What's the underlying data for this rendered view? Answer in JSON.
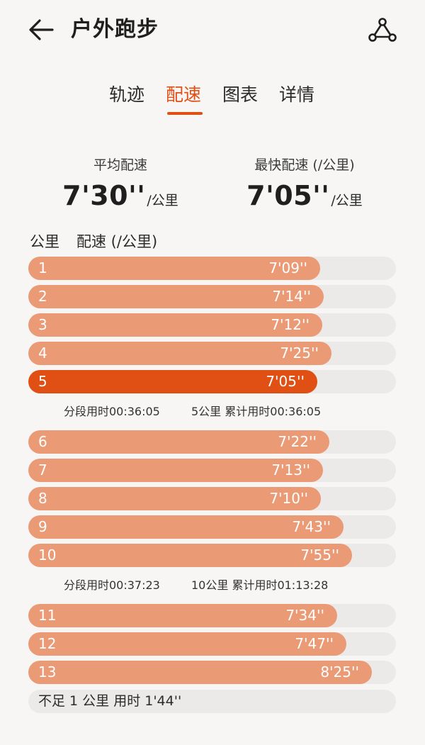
{
  "header": {
    "title": "户外跑步",
    "back_icon": "arrow-left-icon",
    "share_icon": "share-icon"
  },
  "tabs": [
    {
      "label": "轨迹",
      "active": false
    },
    {
      "label": "配速",
      "active": true
    },
    {
      "label": "图表",
      "active": false
    },
    {
      "label": "详情",
      "active": false
    }
  ],
  "summary": {
    "avg_label": "平均配速",
    "avg_value": "7'30''",
    "avg_unit": "/公里",
    "best_label": "最快配速 (/公里)",
    "best_value": "7'05''",
    "best_unit": "/公里"
  },
  "columns": {
    "km": "公里",
    "pace": "配速 (/公里)"
  },
  "colors": {
    "accent": "#e04f14",
    "bar": "#eb9a76",
    "track": "#ebeae9"
  },
  "scale_max_seconds": 540,
  "splits_rows": [
    {
      "km": "1",
      "pace": "7'09''",
      "seconds": 429
    },
    {
      "km": "2",
      "pace": "7'14''",
      "seconds": 434
    },
    {
      "km": "3",
      "pace": "7'12''",
      "seconds": 432
    },
    {
      "km": "4",
      "pace": "7'25''",
      "seconds": 445
    },
    {
      "km": "5",
      "pace": "7'05''",
      "seconds": 425,
      "fastest": true
    },
    {
      "km": "6",
      "pace": "7'22''",
      "seconds": 442
    },
    {
      "km": "7",
      "pace": "7'13''",
      "seconds": 433
    },
    {
      "km": "8",
      "pace": "7'10''",
      "seconds": 430
    },
    {
      "km": "9",
      "pace": "7'43''",
      "seconds": 463
    },
    {
      "km": "10",
      "pace": "7'55''",
      "seconds": 475
    },
    {
      "km": "11",
      "pace": "7'34''",
      "seconds": 454
    },
    {
      "km": "12",
      "pace": "7'47''",
      "seconds": 467
    },
    {
      "km": "13",
      "pace": "8'25''",
      "seconds": 505
    }
  ],
  "split_summaries": [
    {
      "segment": "分段用时00:36:05",
      "cumulative": "5公里 累计用时00:36:05"
    },
    {
      "segment": "分段用时00:37:23",
      "cumulative": "10公里 累计用时01:13:28"
    }
  ],
  "remainder": "不足 1 公里 用时 1'44''"
}
